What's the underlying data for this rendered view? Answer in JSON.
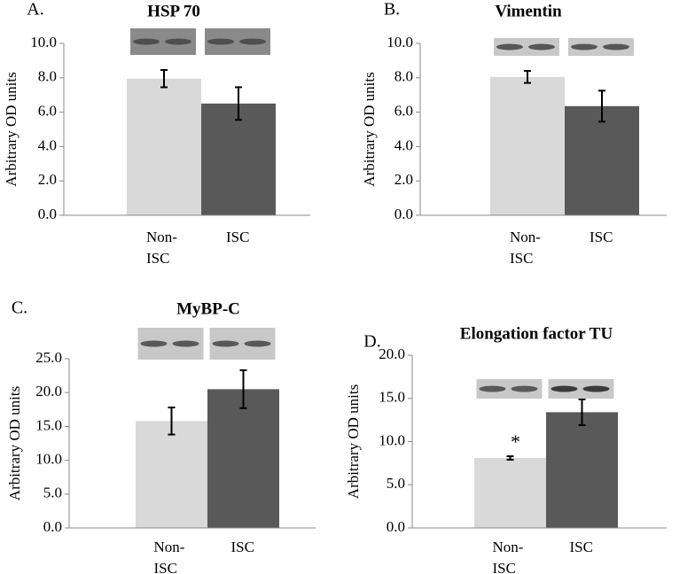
{
  "chart_data": [
    {
      "type": "bar",
      "panel_label": "A.",
      "title": "HSP 70",
      "y_label": "Arbitrary OD  units",
      "categories": [
        "Non-ISC",
        "ISC"
      ],
      "values": [
        7.95,
        6.5
      ],
      "errors": [
        0.5,
        0.95
      ],
      "colors": [
        "#d9d9d9",
        "#595959"
      ],
      "ylim": [
        0,
        10
      ],
      "yticks": [
        {
          "value": 0,
          "label": "0.0"
        },
        {
          "value": 2,
          "label": "2.0"
        },
        {
          "value": 4,
          "label": "4.0"
        },
        {
          "value": 6,
          "label": "6.0"
        },
        {
          "value": 8,
          "label": "8.0"
        },
        {
          "value": 10,
          "label": "10.0"
        }
      ]
    },
    {
      "type": "bar",
      "panel_label": "B.",
      "title": "Vimentin",
      "y_label": "Arbitrary OD units",
      "categories": [
        "Non-ISC",
        "ISC"
      ],
      "values": [
        8.05,
        6.35
      ],
      "errors": [
        0.35,
        0.9
      ],
      "colors": [
        "#d9d9d9",
        "#595959"
      ],
      "ylim": [
        0,
        10
      ],
      "yticks": [
        {
          "value": 0,
          "label": "0.0"
        },
        {
          "value": 2,
          "label": "2.0"
        },
        {
          "value": 4,
          "label": "4.0"
        },
        {
          "value": 6,
          "label": "6.0"
        },
        {
          "value": 8,
          "label": "8.0"
        },
        {
          "value": 10,
          "label": "10.0"
        }
      ]
    },
    {
      "type": "bar",
      "panel_label": "C.",
      "title": "MyBP-C",
      "y_label": "Arbitrary OD units",
      "categories": [
        "Non-ISC",
        "ISC"
      ],
      "values": [
        15.8,
        20.5
      ],
      "errors": [
        2.0,
        2.8
      ],
      "colors": [
        "#d9d9d9",
        "#595959"
      ],
      "ylim": [
        0,
        25
      ],
      "yticks": [
        {
          "value": 0,
          "label": "0.0"
        },
        {
          "value": 5,
          "label": "5.0"
        },
        {
          "value": 10,
          "label": "10.0"
        },
        {
          "value": 15,
          "label": "15.0"
        },
        {
          "value": 20,
          "label": "20.0"
        },
        {
          "value": 25,
          "label": "25.0"
        }
      ]
    },
    {
      "type": "bar",
      "panel_label": "D.",
      "title": "Elongation factor TU",
      "y_label": "Arbitrary OD units",
      "categories": [
        "Non-ISC",
        "ISC"
      ],
      "values": [
        8.1,
        13.4
      ],
      "errors": [
        0.2,
        1.5
      ],
      "colors": [
        "#d9d9d9",
        "#595959"
      ],
      "annotation": "*",
      "ylim": [
        0,
        20
      ],
      "yticks": [
        {
          "value": 0,
          "label": "0.0"
        },
        {
          "value": 5,
          "label": "5.0"
        },
        {
          "value": 10,
          "label": "10.0"
        },
        {
          "value": 15,
          "label": "15.0"
        },
        {
          "value": 20,
          "label": "20.0"
        }
      ]
    }
  ]
}
